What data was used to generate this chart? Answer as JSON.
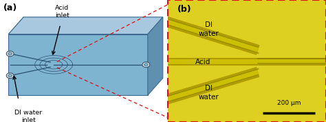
{
  "fig_width": 4.74,
  "fig_height": 1.77,
  "dpi": 100,
  "panel_a_label": "(a)",
  "panel_b_label": "(b)",
  "label_acid_inlet": "Acid\ninlet",
  "label_di_water_inlet": "DI water\ninlet",
  "label_di_water_top": "DI\nwater",
  "label_acid_mid": "Acid",
  "label_di_water_bot": "DI\nwater",
  "scale_bar_label": "200 μm",
  "chip_top_face": "#a8c8e0",
  "chip_front_face": "#7fb4d0",
  "chip_side_face": "#6090b0",
  "chip_bottom_face": "#5080a0",
  "chip_edge_color": "#3a6a90",
  "channel_color": "#2a5070",
  "yellow_bg": "#ddd020",
  "channel_wall_dark": "#8a7800",
  "channel_wall_light": "#b8a800",
  "red_dashed_color": "#dd1010",
  "arrow_color": "#000000",
  "text_color": "#000000",
  "scale_bar_color": "#000000",
  "white_bg": "#ffffff"
}
